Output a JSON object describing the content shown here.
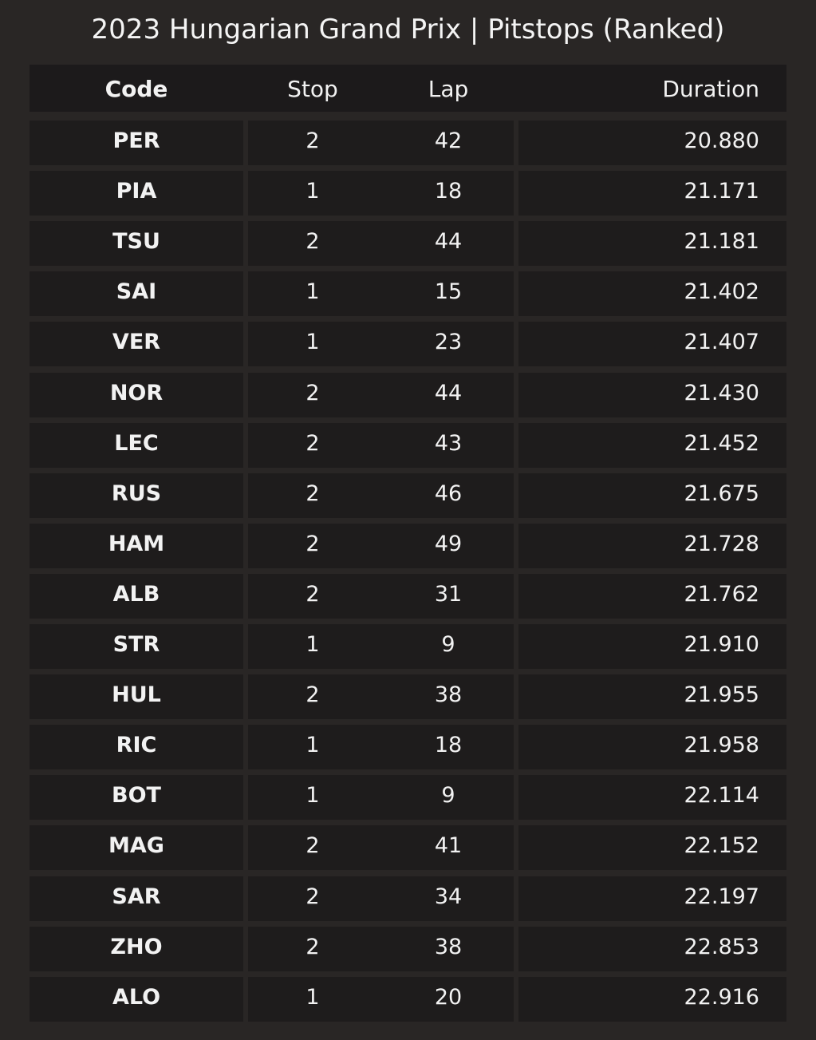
{
  "chart_data": {
    "type": "table",
    "title": "2023 Hungarian Grand Prix | Pitstops (Ranked)",
    "columns": [
      "Code",
      "Stop",
      "Lap",
      "Duration"
    ],
    "rows": [
      [
        "PER",
        "2",
        "42",
        "20.880"
      ],
      [
        "PIA",
        "1",
        "18",
        "21.171"
      ],
      [
        "TSU",
        "2",
        "44",
        "21.181"
      ],
      [
        "SAI",
        "1",
        "15",
        "21.402"
      ],
      [
        "VER",
        "1",
        "23",
        "21.407"
      ],
      [
        "NOR",
        "2",
        "44",
        "21.430"
      ],
      [
        "LEC",
        "2",
        "43",
        "21.452"
      ],
      [
        "RUS",
        "2",
        "46",
        "21.675"
      ],
      [
        "HAM",
        "2",
        "49",
        "21.728"
      ],
      [
        "ALB",
        "2",
        "31",
        "21.762"
      ],
      [
        "STR",
        "1",
        "9",
        "21.910"
      ],
      [
        "HUL",
        "2",
        "38",
        "21.955"
      ],
      [
        "RIC",
        "1",
        "18",
        "21.958"
      ],
      [
        "BOT",
        "1",
        "9",
        "22.114"
      ],
      [
        "MAG",
        "2",
        "41",
        "22.152"
      ],
      [
        "SAR",
        "2",
        "34",
        "22.197"
      ],
      [
        "ZHO",
        "2",
        "38",
        "22.853"
      ],
      [
        "ALO",
        "1",
        "20",
        "22.916"
      ]
    ]
  },
  "colors": {
    "background": "#292625",
    "header_bg": "#1c1a1b",
    "cell_bg": "#1e1c1c",
    "text": "#f2f2f2"
  }
}
